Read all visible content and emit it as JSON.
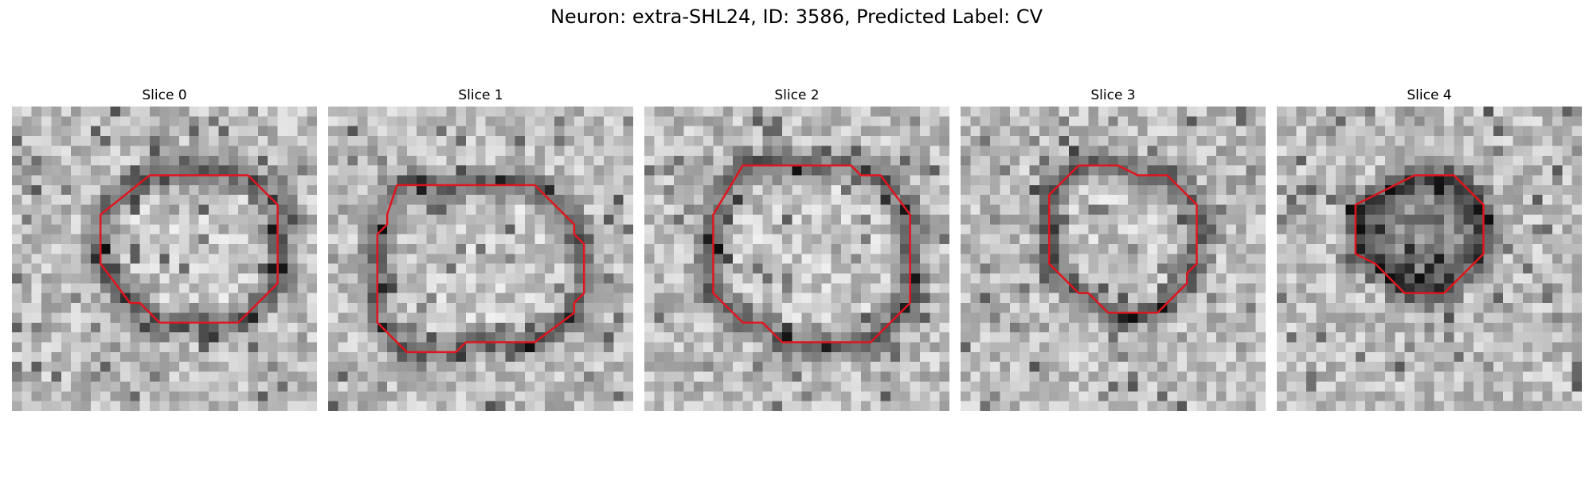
{
  "figure": {
    "title": "Neuron: extra-SHL24, ID: 3586, Predicted Label: CV"
  },
  "contour_color": "#e0141e",
  "image_colormap": "grayscale",
  "slices": [
    {
      "label": "Slice 0",
      "contour": [
        [
          14,
          7
        ],
        [
          24,
          7
        ],
        [
          27,
          10
        ],
        [
          27,
          18
        ],
        [
          23,
          22
        ],
        [
          15,
          22
        ],
        [
          13,
          20
        ],
        [
          12,
          20
        ],
        [
          9,
          16
        ],
        [
          9,
          11
        ]
      ]
    },
    {
      "label": "Slice 1",
      "contour": [
        [
          7,
          8
        ],
        [
          21,
          8
        ],
        [
          25,
          12
        ],
        [
          25,
          13
        ],
        [
          26,
          14
        ],
        [
          26,
          19
        ],
        [
          25,
          20
        ],
        [
          25,
          21
        ],
        [
          21,
          24
        ],
        [
          14,
          24
        ],
        [
          13,
          25
        ],
        [
          8,
          25
        ],
        [
          5,
          22
        ],
        [
          5,
          13
        ],
        [
          6,
          12
        ],
        [
          6,
          11
        ]
      ]
    },
    {
      "label": "Slice 2",
      "contour": [
        [
          10,
          6
        ],
        [
          21,
          6
        ],
        [
          22,
          7
        ],
        [
          24,
          7
        ],
        [
          27,
          11
        ],
        [
          27,
          20
        ],
        [
          23,
          24
        ],
        [
          14,
          24
        ],
        [
          12,
          22
        ],
        [
          10,
          22
        ],
        [
          7,
          19
        ],
        [
          7,
          11
        ]
      ]
    },
    {
      "label": "Slice 3",
      "contour": [
        [
          12,
          6
        ],
        [
          16,
          6
        ],
        [
          18,
          7
        ],
        [
          21,
          7
        ],
        [
          24,
          10
        ],
        [
          24,
          16
        ],
        [
          23,
          17
        ],
        [
          23,
          18
        ],
        [
          20,
          21
        ],
        [
          15,
          21
        ],
        [
          13,
          19
        ],
        [
          12,
          19
        ],
        [
          9,
          16
        ],
        [
          9,
          9
        ]
      ]
    },
    {
      "label": "Slice 4",
      "contour": [
        [
          14,
          7
        ],
        [
          18,
          7
        ],
        [
          21,
          10
        ],
        [
          21,
          15
        ],
        [
          17,
          19
        ],
        [
          13,
          19
        ],
        [
          10,
          16
        ],
        [
          8,
          15
        ],
        [
          8,
          10
        ]
      ]
    }
  ]
}
